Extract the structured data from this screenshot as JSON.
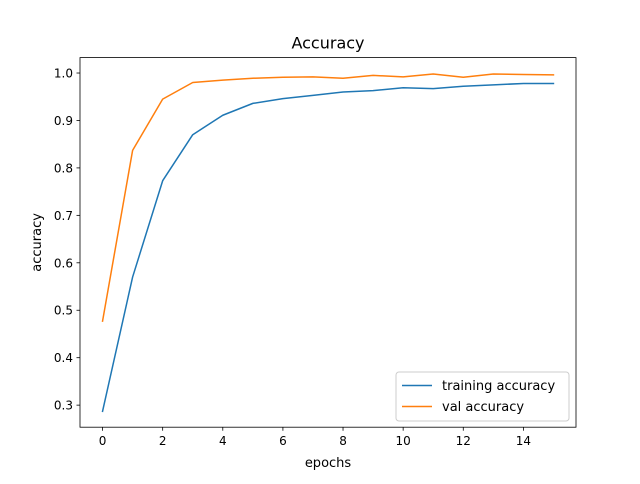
{
  "chart_data": {
    "type": "line",
    "title": "Accuracy",
    "xlabel": "epochs",
    "ylabel": "accuracy",
    "x": [
      0,
      1,
      2,
      3,
      4,
      5,
      6,
      7,
      8,
      9,
      10,
      11,
      12,
      13,
      14,
      15
    ],
    "xlim": [
      -0.75,
      15.75
    ],
    "ylim": [
      0.2535,
      1.0325
    ],
    "xticks": [
      0,
      2,
      4,
      6,
      8,
      10,
      12,
      14
    ],
    "yticks": [
      0.3,
      0.4,
      0.5,
      0.6,
      0.7,
      0.8,
      0.9,
      1.0
    ],
    "xtick_labels": [
      "0",
      "2",
      "4",
      "6",
      "8",
      "10",
      "12",
      "14"
    ],
    "ytick_labels": [
      "0.3",
      "0.4",
      "0.5",
      "0.6",
      "0.7",
      "0.8",
      "0.9",
      "1.0"
    ],
    "grid": false,
    "legend_position": "lower right",
    "series": [
      {
        "name": "training accuracy",
        "color": "#1f77b4",
        "values": [
          0.287,
          0.57,
          0.773,
          0.87,
          0.911,
          0.936,
          0.946,
          0.953,
          0.96,
          0.963,
          0.969,
          0.967,
          0.972,
          0.975,
          0.978,
          0.978
        ]
      },
      {
        "name": "val accuracy",
        "color": "#ff7f0e",
        "values": [
          0.477,
          0.837,
          0.945,
          0.98,
          0.985,
          0.989,
          0.991,
          0.992,
          0.989,
          0.995,
          0.992,
          0.998,
          0.991,
          0.998,
          0.997,
          0.996
        ]
      }
    ]
  }
}
